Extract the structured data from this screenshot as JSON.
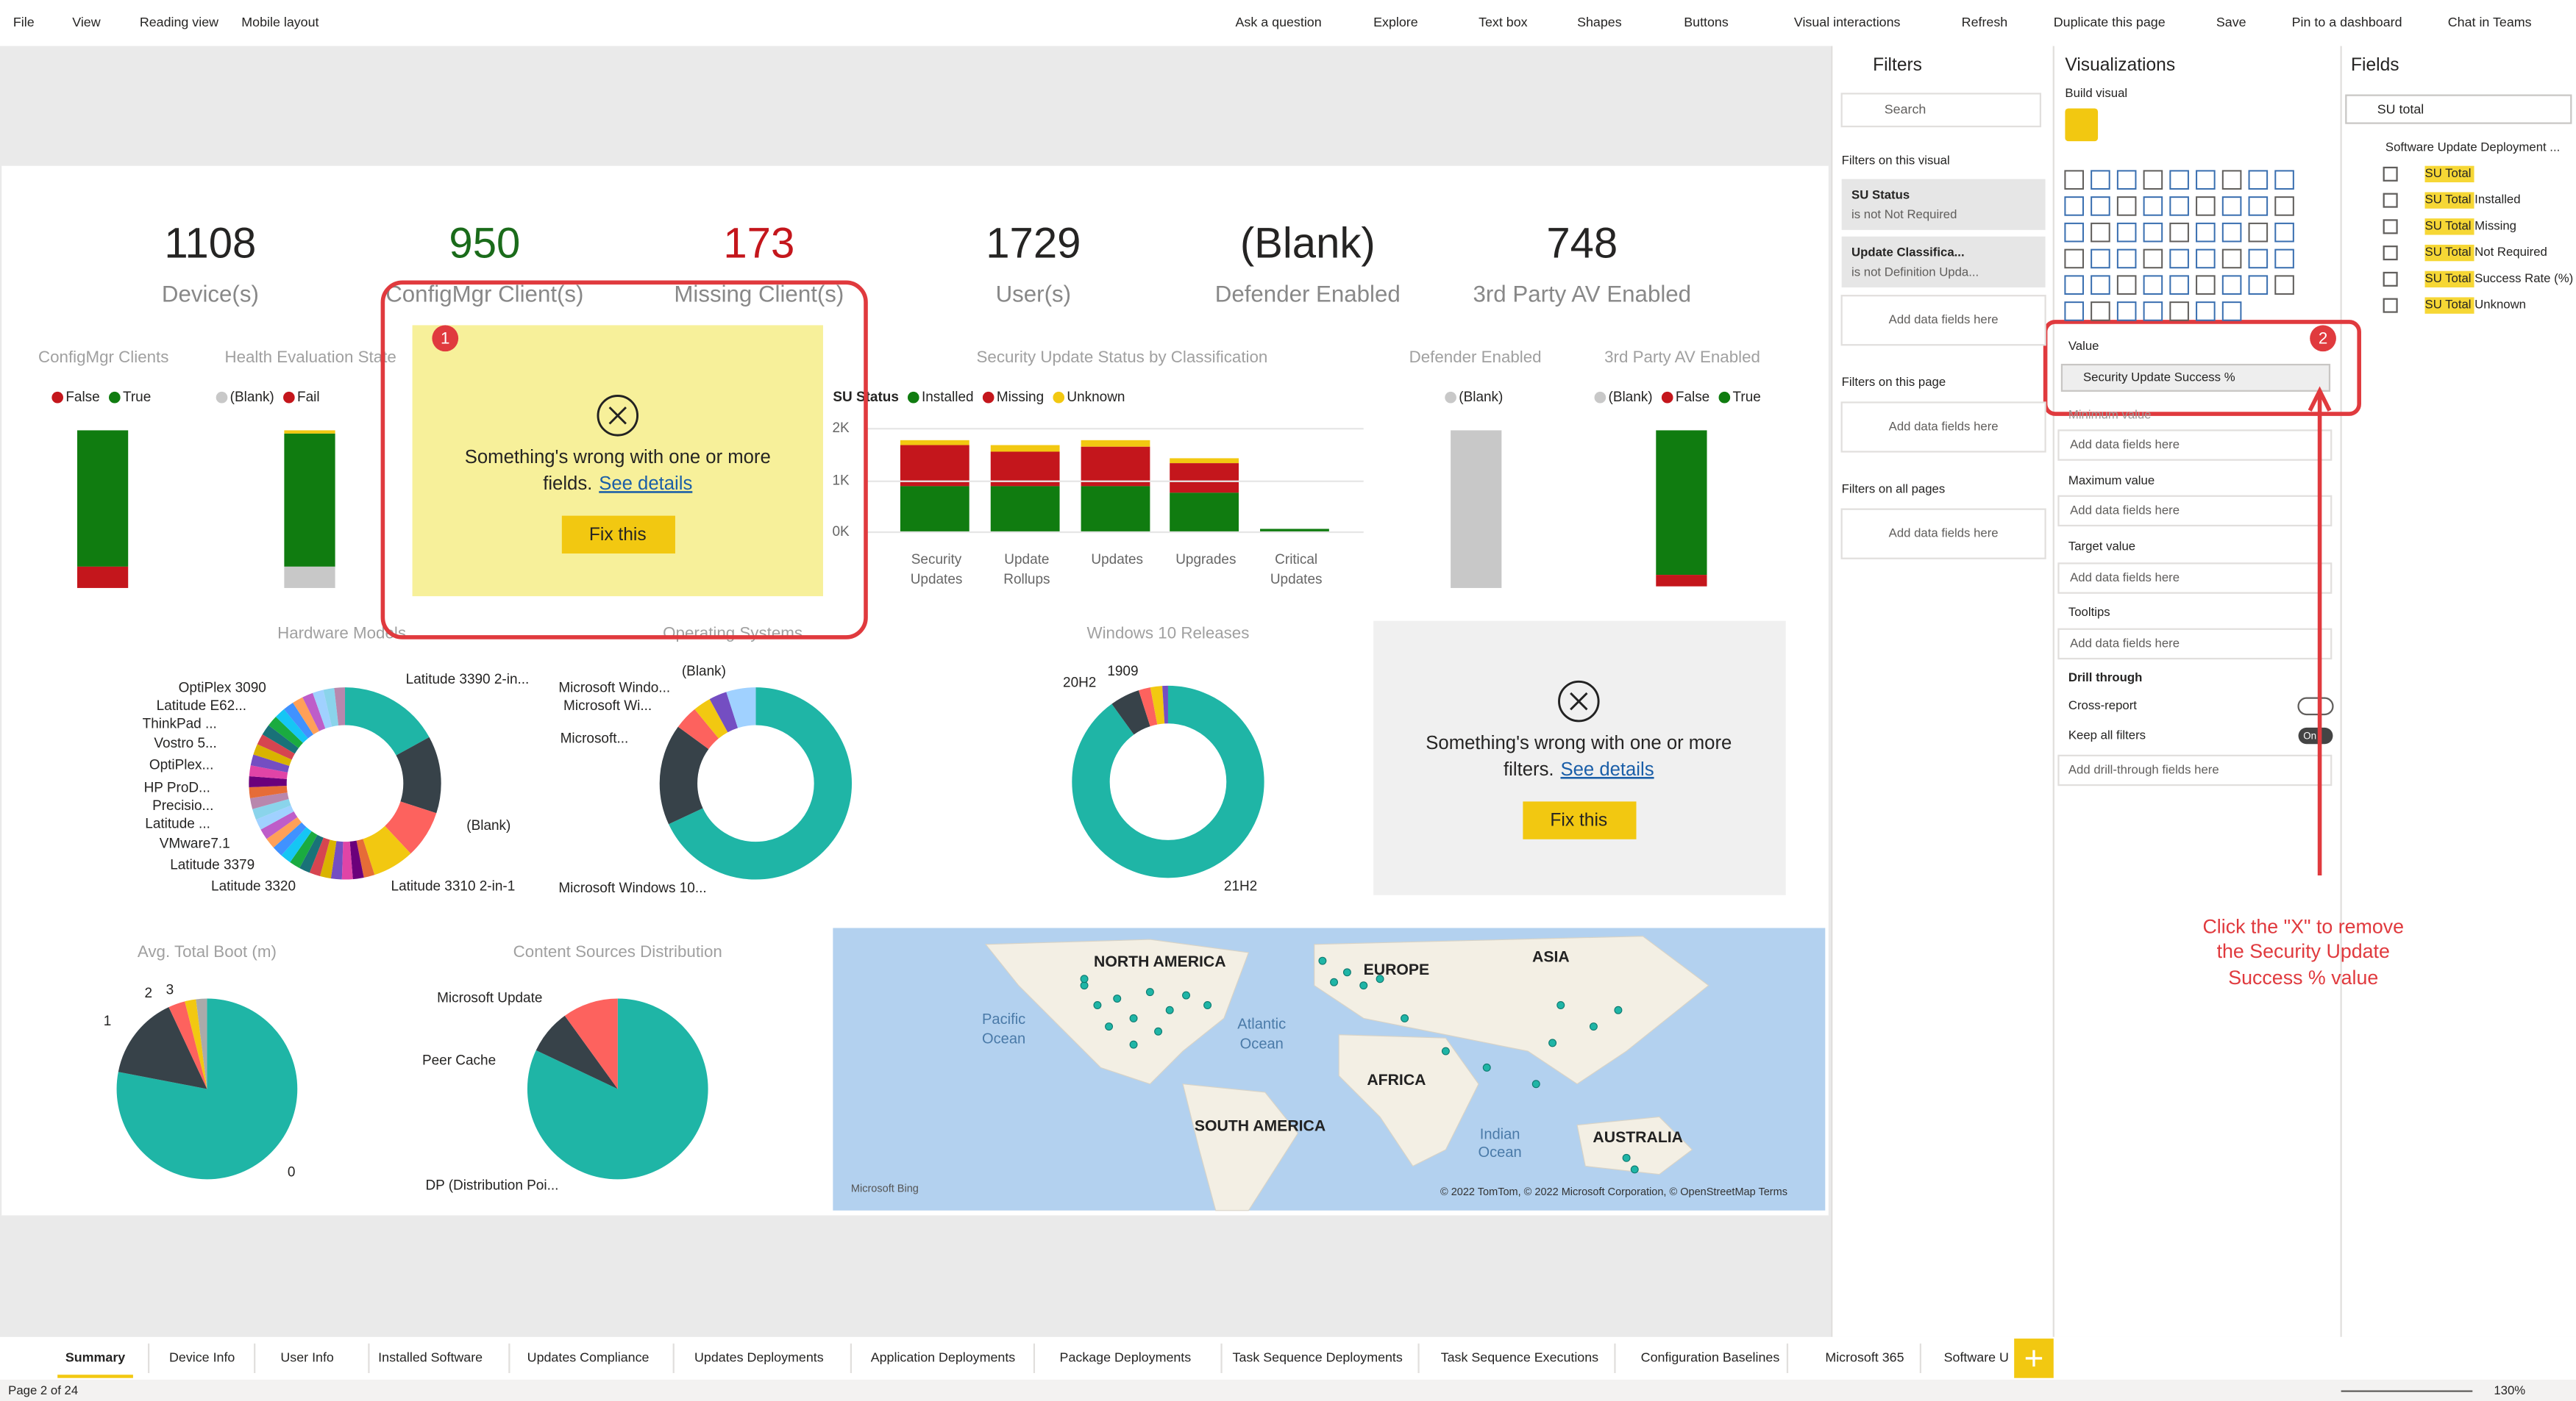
{
  "menu": [
    "File",
    "View",
    "Reading view",
    "Mobile layout"
  ],
  "toolbar": [
    "Ask a question",
    "Explore",
    "Text box",
    "Shapes",
    "Buttons",
    "Visual interactions",
    "Refresh",
    "Duplicate this page",
    "Save",
    "Pin to a dashboard",
    "Chat in Teams"
  ],
  "kpis": [
    {
      "value": 1108,
      "label": "Device(s)"
    },
    {
      "value": 950,
      "label": "ConfigMgr Client(s)"
    },
    {
      "value": 173,
      "label": "Missing Client(s)"
    },
    {
      "value": 1729,
      "label": "User(s)"
    },
    {
      "value": "(Blank)",
      "label": "Defender Enabled"
    },
    {
      "value": 748,
      "label": "3rd Party AV Enabled"
    }
  ],
  "visuals": {
    "configmgr": {
      "title": "ConfigMgr Clients",
      "legend": [
        "False",
        "True"
      ]
    },
    "health": {
      "title": "Health Evaluation State",
      "legend": [
        "(Blank)",
        "Fail"
      ]
    },
    "su_status": {
      "title": "Security Update Status by Classification",
      "legend_title": "SU Status",
      "legend": [
        "Installed",
        "Missing",
        "Unknown"
      ],
      "yticks": [
        "2K",
        "1K",
        "0K"
      ],
      "categories": [
        [
          "Security",
          "Updates"
        ],
        [
          "Update",
          "Rollups"
        ],
        [
          "Updates"
        ],
        [
          "Upgrades"
        ],
        [
          "Critical",
          "Updates"
        ]
      ]
    },
    "defender": {
      "title": "Defender Enabled",
      "legend": [
        "(Blank)"
      ]
    },
    "third_party": {
      "title": "3rd Party AV Enabled",
      "legend": [
        "(Blank)",
        "False",
        "True"
      ]
    },
    "hardware": {
      "title": "Hardware Models",
      "labels": [
        "OptiPlex 3090",
        "Latitude E62...",
        "ThinkPad ...",
        "Vostro 5...",
        "OptiPlex...",
        "HP ProD...",
        "Precisio...",
        "Latitude ...",
        "VMware7.1",
        "Latitude 3379",
        "Latitude 3320",
        "Latitude 3390 2-in...",
        "(Blank)",
        "Latitude 3310 2-in-1"
      ]
    },
    "os": {
      "title": "Operating Systems",
      "labels": [
        "Microsoft Windo...",
        "Microsoft Wi...",
        "(Blank)",
        "Microsoft...",
        "Microsoft Windows 10..."
      ]
    },
    "win10": {
      "title": "Windows 10 Releases",
      "labels": [
        "1909",
        "20H2",
        "21H2"
      ]
    },
    "boot": {
      "title": "Avg. Total Boot (m)",
      "labels": [
        "1",
        "2",
        "3",
        "0"
      ]
    },
    "content": {
      "title": "Content Sources Distribution",
      "labels": [
        "Microsoft Update",
        "Peer Cache",
        "DP (Distribution Poi..."
      ]
    },
    "map": {
      "labels": [
        "NORTH AMERICA",
        "EUROPE",
        "ASIA",
        "Pacific",
        "Ocean",
        "Atlantic",
        "Ocean",
        "AFRICA",
        "SOUTH AMERICA",
        "Indian",
        "Ocean",
        "AUSTRALIA"
      ],
      "attribution": "© 2022 TomTom, © 2022 Microsoft Corporation, © OpenStreetMap  Terms",
      "logo": "Microsoft Bing"
    }
  },
  "error_cards": [
    {
      "line1": "Something's wrong with one or more",
      "line2": "fields.",
      "link": "See details",
      "button": "Fix this"
    },
    {
      "line1": "Something's wrong with one or more",
      "line2": "filters.",
      "link": "See details",
      "button": "Fix this"
    }
  ],
  "filters_pane": {
    "title": "Filters",
    "search": "Search",
    "on_visual": "Filters on this visual",
    "cards": [
      {
        "name": "SU Status",
        "condition": "is not Not Required"
      },
      {
        "name": "Update Classifica...",
        "condition": "is not Definition Upda..."
      }
    ],
    "add": "Add data fields here",
    "on_page": "Filters on this page",
    "on_all": "Filters on all pages"
  },
  "viz_pane": {
    "title": "Visualizations",
    "subtitle": "Build visual",
    "value": "Value",
    "field": "Security Update Success %",
    "minimum": "Minimum value",
    "wells": [
      "Add data fields here",
      "Maximum value",
      "Add data fields here",
      "Target value",
      "Add data fields here",
      "Tooltips",
      "Add data fields here"
    ],
    "drill": "Drill through",
    "cross": "Cross-report",
    "keep": "Keep all filters",
    "toggle": "On",
    "drill_add": "Add drill-through fields here"
  },
  "fields_pane": {
    "title": "Fields",
    "search": "SU total",
    "table": "Software Update Deployment ...",
    "items": [
      {
        "match": "SU Total",
        "rest": ""
      },
      {
        "match": "SU Total",
        "rest": " Installed"
      },
      {
        "match": "SU Total",
        "rest": " Missing"
      },
      {
        "match": "SU Total",
        "rest": " Not Required"
      },
      {
        "match": "SU Total",
        "rest": " Success Rate (%)"
      },
      {
        "match": "SU Total",
        "rest": " Unknown"
      }
    ]
  },
  "annotations": {
    "badges": [
      "1",
      "2"
    ],
    "instruction": [
      "Click the \"X\" to remove",
      "the Security Update",
      "Success % value"
    ]
  },
  "tabs": [
    "Summary",
    "Device Info",
    "User Info",
    "Installed Software",
    "Updates Compliance",
    "Updates Deployments",
    "Application Deployments",
    "Package Deployments",
    "Task Sequence Deployments",
    "Task Sequence Executions",
    "Configuration Baselines",
    "Microsoft 365",
    "Software U"
  ],
  "status": {
    "page": "Page 2 of 24",
    "zoom": "130%"
  }
}
